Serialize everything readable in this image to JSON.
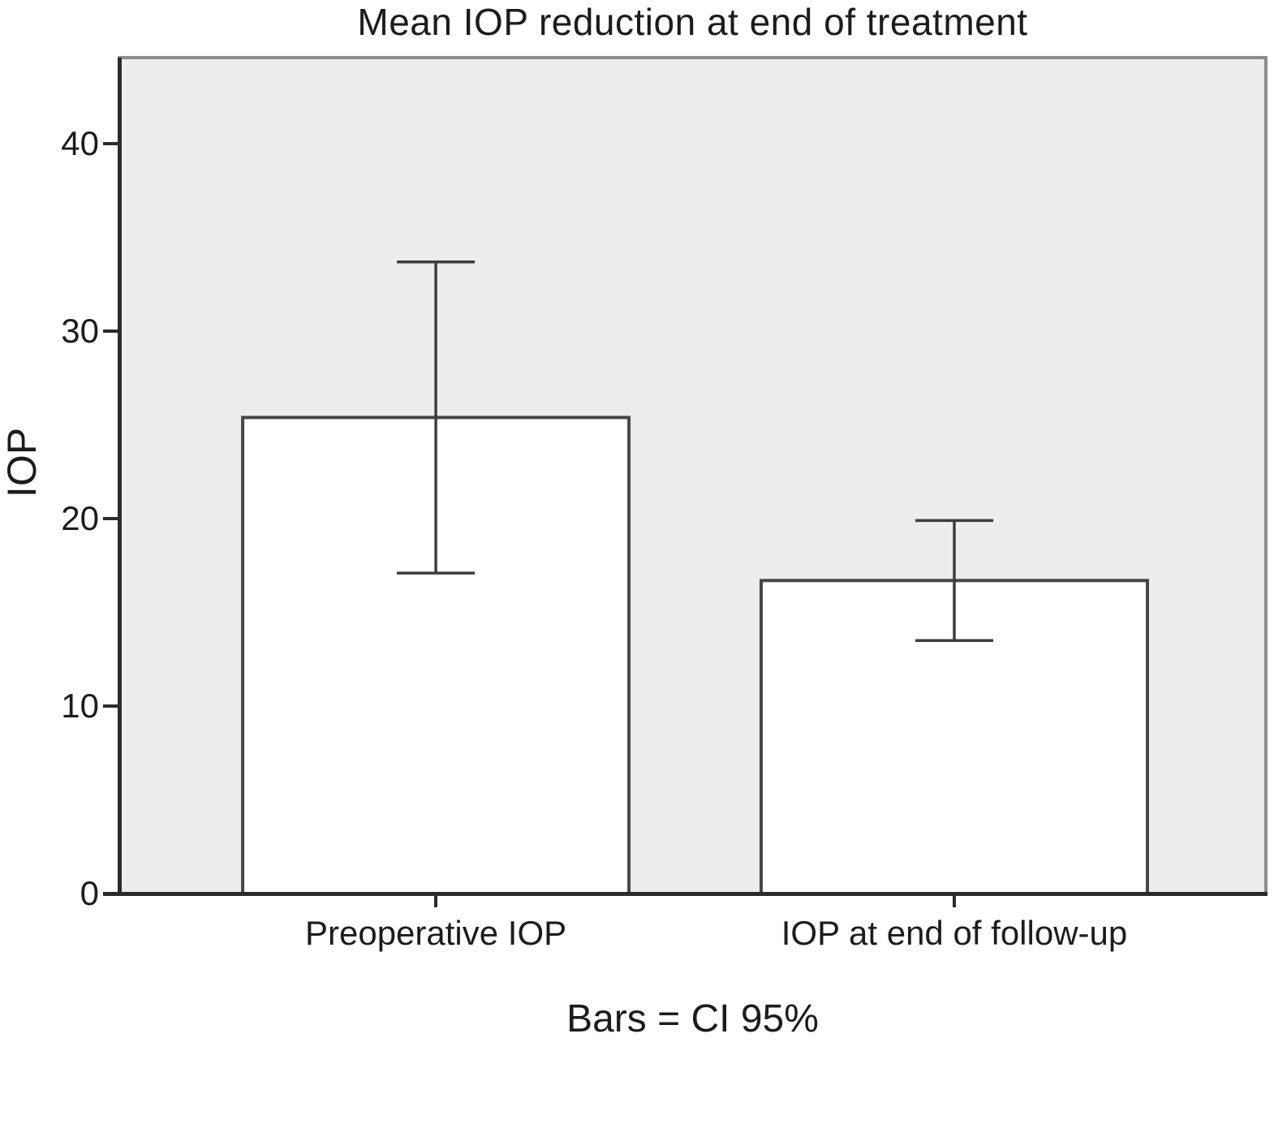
{
  "chart": {
    "title": "Mean IOP reduction at end of treatment",
    "ylabel": "IOP",
    "caption": "Bars = CI 95%"
  },
  "chart_data": {
    "type": "bar",
    "title": "Mean IOP reduction at end of treatment",
    "ylabel": "IOP",
    "xlabel": "",
    "categories": [
      "Preoperative IOP",
      "IOP at end of follow-up"
    ],
    "values": [
      25.4,
      16.7
    ],
    "error_bars": {
      "kind": "CI 95%",
      "low": [
        17.1,
        13.5
      ],
      "high": [
        33.7,
        19.9
      ]
    },
    "yticks": [
      0,
      10,
      20,
      30,
      40
    ],
    "ylim": [
      0,
      44.6
    ],
    "grid": false,
    "legend": false,
    "caption": "Bars = CI 95%",
    "colors": {
      "plot_bg": "#ededed",
      "bar_fill": "#ffffff",
      "bar_stroke": "#474747",
      "error": "#3d3d3d",
      "axis": "#2b2b2b",
      "frame": "#8c8c8c",
      "text": "#1c1c1c",
      "page_bg": "#ffffff"
    }
  }
}
